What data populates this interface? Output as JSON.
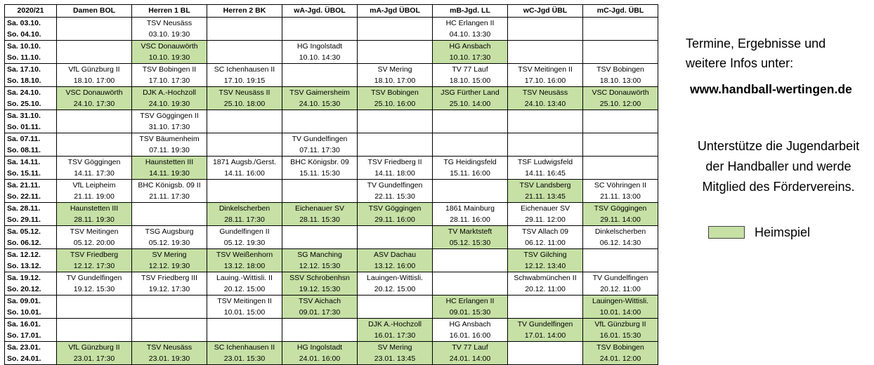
{
  "table": {
    "headers": [
      "2020/21",
      "Damen BOL",
      "Herren 1 BL",
      "Herren 2 BK",
      "wA-Jgd. ÜBOL",
      "mA-Jgd ÜBOL",
      "mB-Jgd. LL",
      "wC-Jgd ÜBL",
      "mC-Jgd. ÜBL"
    ],
    "rows": [
      {
        "d1": "Sa. 03.10.",
        "d2": "So. 04.10.",
        "cells": [
          null,
          {
            "t": "TSV Neusäss",
            "s": "03.10.  19:30",
            "h": false
          },
          null,
          null,
          null,
          {
            "t": "HC Erlangen II",
            "s": "04.10.  13:30",
            "h": false
          },
          null,
          null
        ]
      },
      {
        "d1": "Sa. 10.10.",
        "d2": "So. 11.10.",
        "cells": [
          null,
          {
            "t": "VSC Donauwörth",
            "s": "10.10.  19:30",
            "h": true
          },
          null,
          {
            "t": "HG Ingolstadt",
            "s": "10.10.  14:30",
            "h": false
          },
          null,
          {
            "t": "HG Ansbach",
            "s": "10.10.  17:30",
            "h": true
          },
          null,
          null
        ]
      },
      {
        "d1": "Sa. 17.10.",
        "d2": "So. 18.10.",
        "cells": [
          {
            "t": "VfL Günzburg II",
            "s": "18.10.  17:00",
            "h": false
          },
          {
            "t": "TSV Bobingen II",
            "s": "17.10.  17:30",
            "h": false
          },
          {
            "t": "SC Ichenhausen II",
            "s": "17.10.  19:15",
            "h": false
          },
          null,
          {
            "t": "SV Mering",
            "s": "18.10.  17:00",
            "h": false
          },
          {
            "t": "TV 77 Lauf",
            "s": "18.10.  15:00",
            "h": false
          },
          {
            "t": "TSV Meitingen II",
            "s": "17.10.  16:00",
            "h": false
          },
          {
            "t": "TSV Bobingen",
            "s": "18.10.  13:00",
            "h": false
          }
        ]
      },
      {
        "d1": "Sa. 24.10.",
        "d2": "So. 25.10.",
        "cells": [
          {
            "t": "VSC Donauwörth",
            "s": "24.10.  17:30",
            "h": true
          },
          {
            "t": "DJK A.-Hochzoll",
            "s": "24.10.  19:30",
            "h": true
          },
          {
            "t": "TSV Neusäss II",
            "s": "25.10.  18:00",
            "h": true
          },
          {
            "t": "TSV Gaimersheim",
            "s": "24.10.  15:30",
            "h": true
          },
          {
            "t": "TSV Bobingen",
            "s": "25.10.  16:00",
            "h": true
          },
          {
            "t": "JSG Fürther Land",
            "s": "25.10.  14:00",
            "h": true
          },
          {
            "t": "TSV Neusäss",
            "s": "24.10.  13:40",
            "h": true
          },
          {
            "t": "VSC Donauwörth",
            "s": "25.10.  12:00",
            "h": true
          }
        ]
      },
      {
        "d1": "Sa. 31.10.",
        "d2": "So. 01.11.",
        "cells": [
          null,
          {
            "t": "TSV Göggingen II",
            "s": "31.10.  17:30",
            "h": false
          },
          null,
          null,
          null,
          null,
          null,
          null
        ]
      },
      {
        "d1": "Sa. 07.11.",
        "d2": "So. 08.11.",
        "cells": [
          null,
          {
            "t": "TSV Bäumenheim",
            "s": "07.11.  19:30",
            "h": false
          },
          null,
          {
            "t": "TV Gundelfingen",
            "s": "07.11.  17:30",
            "h": false
          },
          null,
          null,
          null,
          null
        ]
      },
      {
        "d1": "Sa. 14.11.",
        "d2": "So. 15.11.",
        "cells": [
          {
            "t": "TSV Göggingen",
            "s": "14.11.  17:30",
            "h": false
          },
          {
            "t": "Haunstetten III",
            "s": "14.11.  19:30",
            "h": true
          },
          {
            "t": "1871 Augsb./Gerst.",
            "s": "14.11.  16:00",
            "h": false
          },
          {
            "t": "BHC Königsbr. 09",
            "s": "15.11.  15:30",
            "h": false
          },
          {
            "t": "TSV Friedberg II",
            "s": "14.11.  18:00",
            "h": false
          },
          {
            "t": "TG Heidingsfeld",
            "s": "15.11.  16:00",
            "h": false
          },
          {
            "t": "TSF Ludwigsfeld",
            "s": "14.11.  16:45",
            "h": false
          },
          null
        ]
      },
      {
        "d1": "Sa. 21.11.",
        "d2": "So. 22.11.",
        "cells": [
          {
            "t": "VfL Leipheim",
            "s": "21.11.  19:00",
            "h": false
          },
          {
            "t": "BHC Königsb. 09 II",
            "s": "21.11.  17:30",
            "h": false
          },
          null,
          null,
          {
            "t": "TV Gundelfingen",
            "s": "22.11.  15:30",
            "h": false
          },
          null,
          {
            "t": "TSV Landsberg",
            "s": "21.11.  13:45",
            "h": true
          },
          {
            "t": "SC Vöhringen II",
            "s": "21.11.  13:00",
            "h": false
          }
        ]
      },
      {
        "d1": "Sa. 28.11.",
        "d2": "So. 29.11.",
        "cells": [
          {
            "t": "Haunstetten III",
            "s": "28.11.  19:30",
            "h": true
          },
          null,
          {
            "t": "Dinkelscherben",
            "s": "28.11.  17:30",
            "h": true
          },
          {
            "t": "Eichenauer SV",
            "s": "28.11.  15:30",
            "h": true
          },
          {
            "t": "TSV Göggingen",
            "s": "29.11.  16:00",
            "h": true
          },
          {
            "t": "1861 Mainburg",
            "s": "28.11.  16:00",
            "h": false
          },
          {
            "t": "Eichenauer SV",
            "s": "29.11.  12:00",
            "h": false
          },
          {
            "t": "TSV Göggingen",
            "s": "29.11.  14:00",
            "h": true
          }
        ]
      },
      {
        "d1": "Sa. 05.12.",
        "d2": "So. 06.12.",
        "cells": [
          {
            "t": "TSV Meitingen",
            "s": "05.12.  20:00",
            "h": false
          },
          {
            "t": "TSG Augsburg",
            "s": "05.12.  19:30",
            "h": false
          },
          {
            "t": "Gundelfingen II",
            "s": "05.12.  19:30",
            "h": false
          },
          null,
          null,
          {
            "t": "TV Marktsteft",
            "s": "05.12.  15:30",
            "h": true
          },
          {
            "t": "TSV Allach 09",
            "s": "06.12.  11:00",
            "h": false
          },
          {
            "t": "Dinkelscherben",
            "s": "06.12.  14:30",
            "h": false
          }
        ]
      },
      {
        "d1": "Sa. 12.12.",
        "d2": "So. 13.12.",
        "cells": [
          {
            "t": "TSV Friedberg",
            "s": "12.12.  17:30",
            "h": true
          },
          {
            "t": "SV Mering",
            "s": "12.12.  19:30",
            "h": true
          },
          {
            "t": "TSV Weißenhorn",
            "s": "13.12.  18:00",
            "h": true
          },
          {
            "t": "SG Manching",
            "s": "12.12.  15:30",
            "h": true
          },
          {
            "t": "ASV Dachau",
            "s": "13.12.  16:00",
            "h": true
          },
          null,
          {
            "t": "TSV Gilching",
            "s": "12.12.  13:40",
            "h": true
          },
          null
        ]
      },
      {
        "d1": "Sa. 19.12.",
        "d2": "So. 20.12.",
        "cells": [
          {
            "t": "TV Gundelfingen",
            "s": "19.12.  15:30",
            "h": false
          },
          {
            "t": "TSV Friedberg III",
            "s": "19.12.  17:30",
            "h": false
          },
          {
            "t": "Lauing.-Wittisli. II",
            "s": "20.12.  15:00",
            "h": false
          },
          {
            "t": "SSV Schrobenhsn",
            "s": "19.12.  15:30",
            "h": true
          },
          {
            "t": "Lauingen-Wittisli.",
            "s": "20.12.  15:00",
            "h": false
          },
          null,
          {
            "t": "Schwabmünchen II",
            "s": "20.12.  11:00",
            "h": false
          },
          {
            "t": "TV Gundelfingen",
            "s": "20.12.  11:00",
            "h": false
          }
        ]
      },
      {
        "d1": "Sa. 09.01.",
        "d2": "So. 10.01.",
        "cells": [
          null,
          null,
          {
            "t": "TSV Meitingen II",
            "s": "10.01.  15:00",
            "h": false
          },
          {
            "t": "TSV Aichach",
            "s": "09.01.  17:30",
            "h": true
          },
          null,
          {
            "t": "HC Erlangen II",
            "s": "09.01.  15:30",
            "h": true
          },
          null,
          {
            "t": "Lauingen-Wittisli.",
            "s": "10.01.  14:00",
            "h": true
          }
        ]
      },
      {
        "d1": "Sa. 16.01.",
        "d2": "So. 17.01.",
        "cells": [
          null,
          null,
          null,
          null,
          {
            "t": "DJK A.-Hochzoll",
            "s": "16.01.  17:30",
            "h": true
          },
          {
            "t": "HG Ansbach",
            "s": "16.01.  16:00",
            "h": false
          },
          {
            "t": "TV Gundelfingen",
            "s": "17.01.  14:00",
            "h": true
          },
          {
            "t": "VfL Günzburg II",
            "s": "16.01.  15:30",
            "h": true
          }
        ]
      },
      {
        "d1": "Sa. 23.01.",
        "d2": "So. 24.01.",
        "cells": [
          {
            "t": "VfL Günzburg II",
            "s": "23.01.  17:30",
            "h": true
          },
          {
            "t": "TSV Neusäss",
            "s": "23.01.  19:30",
            "h": true
          },
          {
            "t": "SC Ichenhausen II",
            "s": "23.01.  15:30",
            "h": true
          },
          {
            "t": "HG Ingolstadt",
            "s": "24.01.  16:00",
            "h": true
          },
          {
            "t": "SV Mering",
            "s": "23.01.  13:45",
            "h": true
          },
          {
            "t": "TV 77 Lauf",
            "s": "24.01.  14:00",
            "h": true
          },
          null,
          {
            "t": "TSV Bobingen",
            "s": "24.01.  12:00",
            "h": true
          }
        ]
      }
    ]
  },
  "sidebar": {
    "info_line1": "Termine, Ergebnisse und",
    "info_line2": "weitere Infos unter:",
    "website": "www.handball-wertingen.de",
    "support_line1": "Unterstütze die Jugendarbeit",
    "support_line2": "der Handballer und werde",
    "support_line3": "Mitglied des Fördervereins.",
    "legend_label": "Heimspiel"
  },
  "colors": {
    "home_fill": "#c6e0a5",
    "border": "#000000"
  }
}
